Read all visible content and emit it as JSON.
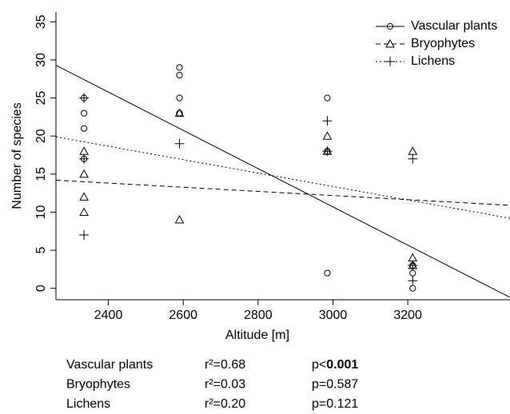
{
  "chart_data": {
    "type": "scatter",
    "x_label": "Altitude [m]",
    "y_label": "Number of species",
    "xlim": [
      2260,
      3473
    ],
    "ylim": [
      -1.5,
      36.3
    ],
    "xticks": [
      2400,
      2600,
      2800,
      3000,
      3200
    ],
    "yticks": [
      0,
      5,
      10,
      15,
      20,
      25,
      30,
      35
    ],
    "legend": "top-right",
    "series": [
      {
        "name": "Vascular plants",
        "color": "#000000",
        "marker": "circle",
        "dash": "solid",
        "x": [
          2335,
          2335,
          2335,
          2335,
          2590,
          2590,
          2590,
          2590,
          2985,
          2985,
          2985,
          3213,
          3213,
          3213
        ],
        "values": [
          25,
          23,
          21,
          17,
          29,
          28,
          25,
          23,
          25,
          18,
          2,
          3,
          2,
          0
        ],
        "fit_x": [
          2260,
          3473
        ],
        "fit": [
          29.3,
          -1.2
        ]
      },
      {
        "name": "Bryophytes",
        "color": "#000000",
        "marker": "triangle",
        "dash": "dashed",
        "x": [
          2335,
          2335,
          2335,
          2335,
          2590,
          2590,
          2985,
          2985,
          3213,
          3213,
          3213
        ],
        "values": [
          18,
          15,
          12,
          10,
          23,
          9,
          20,
          18,
          18,
          4,
          3
        ],
        "fit_x": [
          2260,
          3473
        ],
        "fit": [
          14.2,
          10.9
        ]
      },
      {
        "name": "Lichens",
        "color": "#000000",
        "marker": "plus",
        "dash": "dotted",
        "x": [
          2335,
          2335,
          2335,
          2590,
          2985,
          2985,
          3213,
          3213,
          3213
        ],
        "values": [
          25,
          17,
          7,
          19,
          22,
          18,
          17,
          3,
          1
        ],
        "fit_x": [
          2260,
          3473
        ],
        "fit": [
          19.9,
          9.2
        ]
      }
    ],
    "stats": [
      {
        "name": "Vascular plants",
        "r2": "r²=0.68",
        "p": "p<",
        "p_bold": "0.001"
      },
      {
        "name": "Bryophytes",
        "r2": "r²=0.03",
        "p": "p=0.587"
      },
      {
        "name": "Lichens",
        "r2": "r²=0.20",
        "p": "p=0.121"
      }
    ]
  }
}
